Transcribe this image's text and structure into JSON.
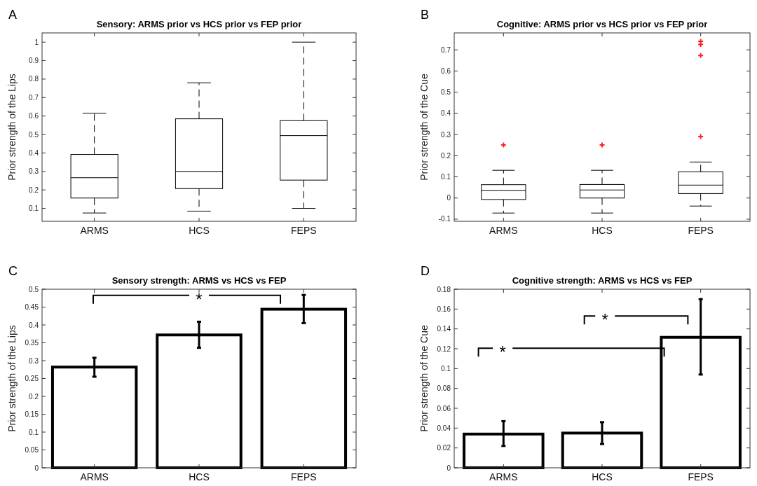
{
  "chart_data": [
    {
      "type": "box",
      "title": "Sensory: ARMS prior vs HCS prior vs FEP prior",
      "ylabel": "Prior strength of the Lips",
      "annotations": [
        "A"
      ],
      "categories": [
        "ARMS",
        "HCS",
        "FEPS"
      ],
      "ylim": [
        0.03,
        1.05
      ],
      "yticks": [
        0.1,
        0.2,
        0.3,
        0.4,
        0.5,
        0.6,
        0.7,
        0.8,
        0.9,
        1
      ],
      "boxes": [
        {
          "low": 0.075,
          "q1": 0.156,
          "median": 0.266,
          "q3": 0.392,
          "high": 0.615
        },
        {
          "low": 0.085,
          "q1": 0.207,
          "median": 0.3,
          "q3": 0.585,
          "high": 0.78
        },
        {
          "low": 0.1,
          "q1": 0.253,
          "median": 0.494,
          "q3": 0.575,
          "high": 1.0
        }
      ]
    },
    {
      "type": "box",
      "title": "Cognitive: ARMS prior vs HCS prior vs FEP prior",
      "ylabel": "Prior strength of the Cue",
      "annotations": [
        "B"
      ],
      "categories": [
        "ARMS",
        "HCS",
        "FEPS"
      ],
      "ylim": [
        -0.11,
        0.78
      ],
      "yticks": [
        -0.1,
        0,
        0.1,
        0.2,
        0.3,
        0.4,
        0.5,
        0.6,
        0.7
      ],
      "boxes": [
        {
          "low": -0.071,
          "q1": -0.007,
          "median": 0.035,
          "q3": 0.063,
          "high": 0.131,
          "outliers": [
            0.251
          ]
        },
        {
          "low": -0.071,
          "q1": 0,
          "median": 0.038,
          "q3": 0.064,
          "high": 0.131,
          "outliers": [
            0.251
          ]
        },
        {
          "low": -0.038,
          "q1": 0.021,
          "median": 0.061,
          "q3": 0.124,
          "high": 0.17,
          "outliers": [
            0.29,
            0.673,
            0.725,
            0.74
          ]
        }
      ]
    },
    {
      "type": "bar",
      "title": "Sensory strength: ARMS vs HCS vs FEP",
      "ylabel": "Prior strength of the Lips",
      "annotations": [
        "C",
        "*"
      ],
      "categories": [
        "ARMS",
        "HCS",
        "FEPS"
      ],
      "color": "#ffffff",
      "ylim": [
        0,
        0.5
      ],
      "yticks": [
        0,
        0.05,
        0.1,
        0.15,
        0.2,
        0.25,
        0.3,
        0.35,
        0.4,
        0.45,
        0.5
      ],
      "values": [
        0.282,
        0.372,
        0.444
      ],
      "errors": [
        [
          0.255,
          0.308
        ],
        [
          0.336,
          0.409
        ],
        [
          0.405,
          0.484
        ]
      ]
    },
    {
      "type": "bar",
      "title": "Cognitive strength: ARMS vs HCS vs FEP",
      "ylabel": "Prior strength of the Cue",
      "annotations": [
        "D",
        "*",
        "*"
      ],
      "categories": [
        "ARMS",
        "HCS",
        "FEPS"
      ],
      "color": "#ffffff",
      "ylim": [
        0,
        0.18
      ],
      "yticks": [
        0,
        0.02,
        0.04,
        0.06,
        0.08,
        0.1,
        0.12,
        0.14,
        0.16,
        0.18
      ],
      "values": [
        0.034,
        0.035,
        0.1315
      ],
      "errors": [
        [
          0.022,
          0.047
        ],
        [
          0.024,
          0.046
        ],
        [
          0.094,
          0.17
        ]
      ]
    }
  ]
}
